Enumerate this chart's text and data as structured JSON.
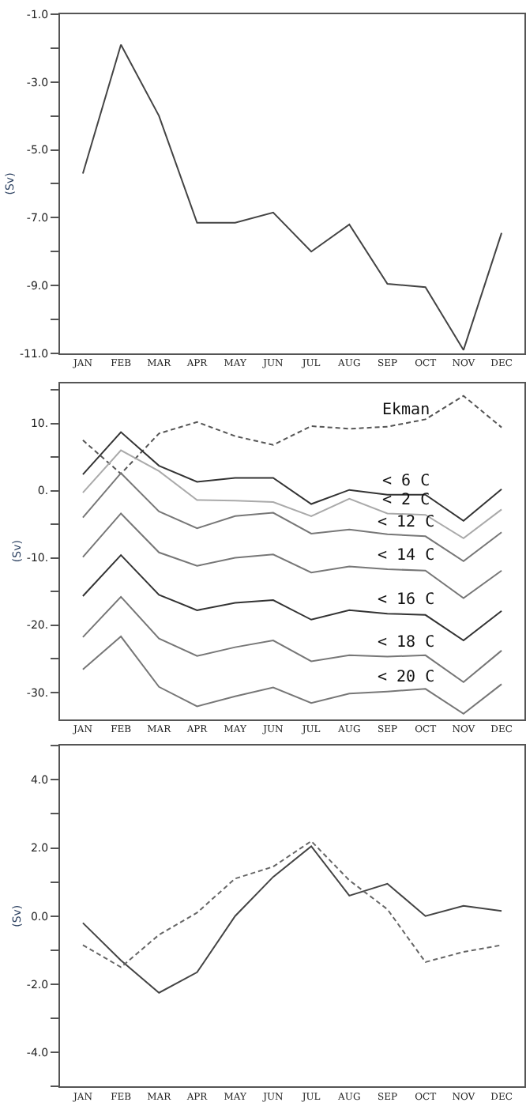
{
  "chart_data": [
    {
      "type": "line",
      "ylabel": "(Sv)",
      "categories": [
        "JAN",
        "FEB",
        "MAR",
        "APR",
        "MAY",
        "JUN",
        "JUL",
        "AUG",
        "SEP",
        "OCT",
        "NOV",
        "DEC"
      ],
      "series": [
        {
          "color": "#444444",
          "line_style": "solid",
          "values": [
            -5.7,
            -1.9,
            -4.0,
            -7.15,
            -7.15,
            -6.85,
            -8.0,
            -7.2,
            -8.95,
            -9.05,
            -10.9,
            -7.45
          ]
        }
      ],
      "ylim": [
        -11,
        -1
      ],
      "yticks": [
        {
          "value": -1,
          "label": "-1.0"
        },
        {
          "value": -2,
          "label": null
        },
        {
          "value": -3,
          "label": "-3.0"
        },
        {
          "value": -4,
          "label": null
        },
        {
          "value": -5,
          "label": "-5.0"
        },
        {
          "value": -6,
          "label": null
        },
        {
          "value": -7,
          "label": "-7.0"
        },
        {
          "value": -8,
          "label": null
        },
        {
          "value": -9,
          "label": "-9.0"
        },
        {
          "value": -10,
          "label": null
        },
        {
          "value": -11,
          "label": "-11.0"
        }
      ],
      "legend": false,
      "marker": "none"
    },
    {
      "type": "line",
      "ylabel": "(Sv)",
      "categories": [
        "JAN",
        "FEB",
        "MAR",
        "APR",
        "MAY",
        "JUN",
        "JUL",
        "AUG",
        "SEP",
        "OCT",
        "NOV",
        "DEC"
      ],
      "series": [
        {
          "name": "Ekman",
          "color": "#555555",
          "line_style": "dashed",
          "values": [
            7.5,
            2.5,
            8.5,
            10.2,
            8.1,
            6.8,
            9.6,
            9.2,
            9.5,
            10.6,
            14.1,
            9.4
          ]
        },
        {
          "name": "< 6 C",
          "color": "#333333",
          "line_style": "solid",
          "values": [
            2.4,
            8.7,
            3.7,
            1.3,
            1.9,
            1.9,
            -2.0,
            0.1,
            -0.6,
            -0.6,
            -4.5,
            0.2
          ]
        },
        {
          "name": "< 2 C",
          "color": "#aaaaaa",
          "line_style": "solid",
          "values": [
            -0.3,
            6.0,
            2.9,
            -1.4,
            -1.5,
            -1.7,
            -3.8,
            -1.2,
            -3.4,
            -3.6,
            -7.1,
            -2.8
          ]
        },
        {
          "name": "< 12 C",
          "color": "#777777",
          "line_style": "solid",
          "values": [
            -4.0,
            2.6,
            -3.1,
            -5.6,
            -3.8,
            -3.3,
            -6.4,
            -5.8,
            -6.5,
            -6.8,
            -10.5,
            -6.2
          ]
        },
        {
          "name": "< 14 C",
          "color": "#777777",
          "line_style": "solid",
          "values": [
            -9.9,
            -3.4,
            -9.2,
            -11.2,
            -10.0,
            -9.5,
            -12.2,
            -11.3,
            -11.7,
            -11.9,
            -16.0,
            -11.9
          ]
        },
        {
          "name": "< 16 C",
          "color": "#333333",
          "line_style": "solid",
          "values": [
            -15.7,
            -9.6,
            -15.5,
            -17.8,
            -16.7,
            -16.3,
            -19.2,
            -17.8,
            -18.3,
            -18.5,
            -22.3,
            -17.9
          ]
        },
        {
          "name": "< 18 C",
          "color": "#777777",
          "line_style": "solid",
          "values": [
            -21.8,
            -15.8,
            -22.0,
            -24.6,
            -23.3,
            -22.3,
            -25.4,
            -24.5,
            -24.7,
            -24.5,
            -28.5,
            -23.8
          ]
        },
        {
          "name": "< 20 C",
          "color": "#777777",
          "line_style": "solid",
          "values": [
            -26.6,
            -21.7,
            -29.2,
            -32.1,
            -30.6,
            -29.3,
            -31.6,
            -30.2,
            -29.9,
            -29.5,
            -33.2,
            -28.8
          ]
        }
      ],
      "ylim": [
        -34,
        16
      ],
      "yticks": [
        {
          "value": 15,
          "label": null
        },
        {
          "value": 10,
          "label": "10."
        },
        {
          "value": 5,
          "label": null
        },
        {
          "value": 0,
          "label": "0."
        },
        {
          "value": -5,
          "label": null
        },
        {
          "value": -10,
          "label": "-10."
        },
        {
          "value": -15,
          "label": null
        },
        {
          "value": -20,
          "label": "-20."
        },
        {
          "value": -25,
          "label": null
        },
        {
          "value": -30,
          "label": "-30."
        }
      ],
      "legend": false,
      "marker": "none"
    },
    {
      "type": "line",
      "ylabel": "(Sv)",
      "categories": [
        "JAN",
        "FEB",
        "MAR",
        "APR",
        "MAY",
        "JUN",
        "JUL",
        "AUG",
        "SEP",
        "OCT",
        "NOV",
        "DEC"
      ],
      "series": [
        {
          "color": "#444444",
          "line_style": "solid",
          "values": [
            -0.2,
            -1.3,
            -2.25,
            -1.65,
            0.0,
            1.15,
            2.05,
            0.6,
            0.95,
            0.0,
            0.3,
            0.15
          ]
        },
        {
          "color": "#666666",
          "line_style": "dashed",
          "values": [
            -0.85,
            -1.5,
            -0.55,
            0.1,
            1.1,
            1.45,
            2.2,
            1.05,
            0.2,
            -1.35,
            -1.05,
            -0.85
          ]
        }
      ],
      "ylim": [
        -5,
        5
      ],
      "yticks": [
        {
          "value": 5,
          "label": null
        },
        {
          "value": 4,
          "label": "4.0"
        },
        {
          "value": 3,
          "label": null
        },
        {
          "value": 2,
          "label": "2.0"
        },
        {
          "value": 1,
          "label": null
        },
        {
          "value": 0,
          "label": "0.0"
        },
        {
          "value": -1,
          "label": null
        },
        {
          "value": -2,
          "label": "-2.0"
        },
        {
          "value": -3,
          "label": null
        },
        {
          "value": -4,
          "label": "-4.0"
        },
        {
          "value": -5,
          "label": null
        }
      ],
      "legend": false,
      "marker": "none"
    }
  ]
}
